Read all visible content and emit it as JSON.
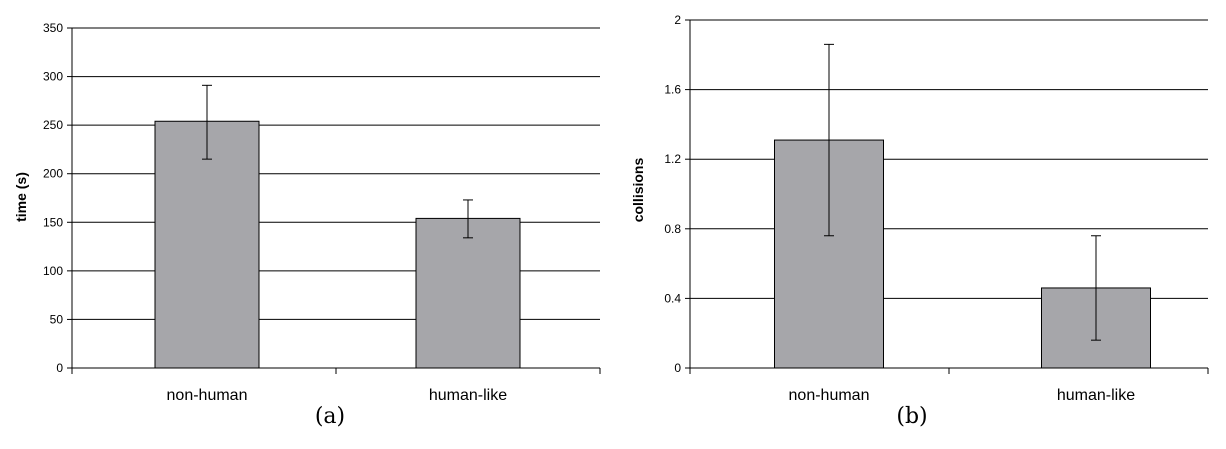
{
  "chart_data": [
    {
      "type": "bar",
      "caption": "(a)",
      "ylabel": "time (s)",
      "ylim": [
        0,
        350
      ],
      "yticks": [
        0,
        50,
        100,
        150,
        200,
        250,
        300,
        350
      ],
      "ytick_labels": [
        "0",
        "50",
        "100",
        "150",
        "200",
        "250",
        "300",
        "350"
      ],
      "categories": [
        "non-human",
        "human-like"
      ],
      "values": [
        254,
        154
      ],
      "error_low": [
        215,
        134
      ],
      "error_high": [
        291,
        173
      ],
      "grid": true,
      "bar_color": "#a6a6aa"
    },
    {
      "type": "bar",
      "caption": "(b)",
      "ylabel": "collisions",
      "ylim": [
        0,
        2
      ],
      "yticks": [
        0,
        0.4,
        0.8,
        1.2,
        1.6,
        2
      ],
      "ytick_labels": [
        "0",
        "0.4",
        "0.8",
        "1.2",
        "1.6",
        "2"
      ],
      "categories": [
        "non-human",
        "human-like"
      ],
      "values": [
        1.31,
        0.46
      ],
      "error_low": [
        0.76,
        0.16
      ],
      "error_high": [
        1.86,
        0.76
      ],
      "grid": true,
      "bar_color": "#a6a6aa"
    }
  ]
}
